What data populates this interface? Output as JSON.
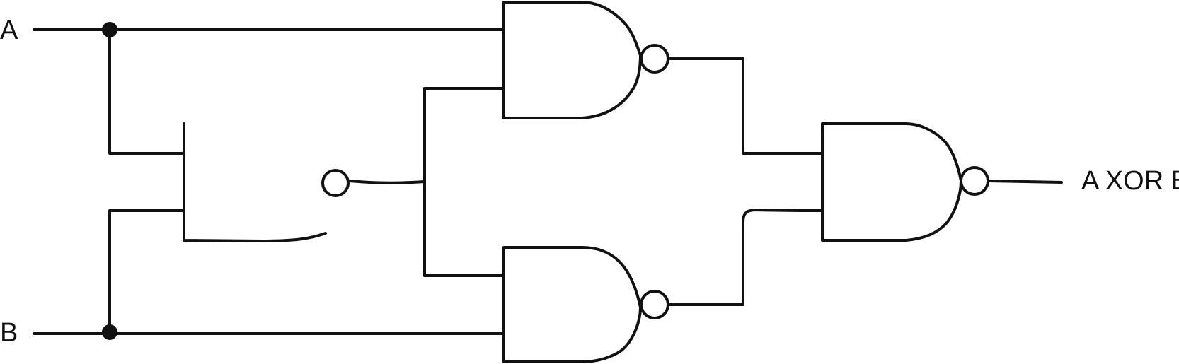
{
  "inputs": {
    "a_label": "A",
    "b_label": "B"
  },
  "output": {
    "label": "A XOR B"
  },
  "gates": [
    {
      "id": "nand-1",
      "type": "NAND"
    },
    {
      "id": "nand-2",
      "type": "NAND"
    },
    {
      "id": "nand-3",
      "type": "NAND"
    },
    {
      "id": "nand-4",
      "type": "NAND"
    }
  ],
  "colors": {
    "stroke": "#111111",
    "background": "#ffffff"
  }
}
